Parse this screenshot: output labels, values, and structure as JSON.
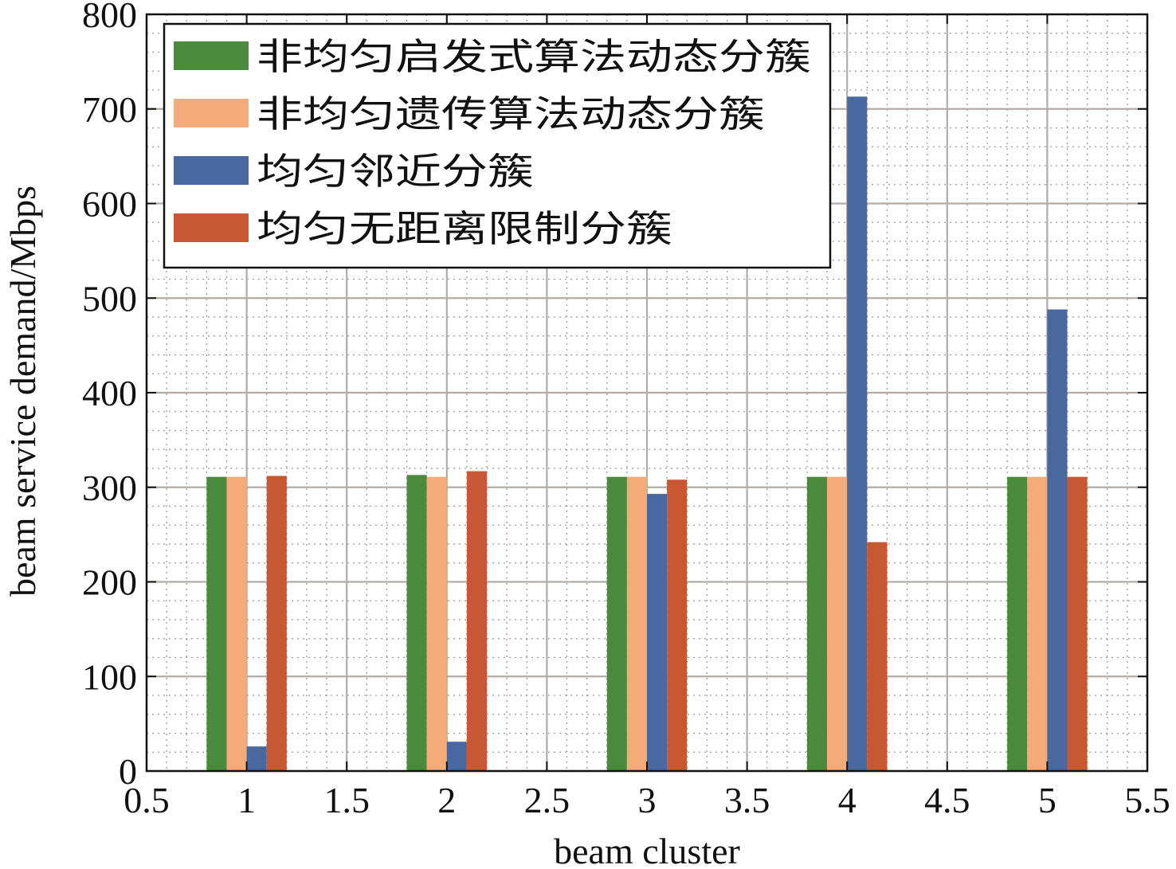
{
  "chart_data": {
    "type": "bar",
    "xlabel": "beam cluster",
    "ylabel": "beam service demand/Mbps",
    "xlim": [
      0.5,
      5.5
    ],
    "ylim": [
      0,
      800
    ],
    "x_ticks": [
      "0.5",
      "1",
      "1.5",
      "2",
      "2.5",
      "3",
      "3.5",
      "4",
      "4.5",
      "5",
      "5.5"
    ],
    "y_ticks": [
      "0",
      "100",
      "200",
      "300",
      "400",
      "500",
      "600",
      "700",
      "800"
    ],
    "categories": [
      1,
      2,
      3,
      4,
      5
    ],
    "series": [
      {
        "name": "非均匀启发式算法动态分簇",
        "color": "#4a8a3c",
        "values": [
          311,
          313,
          311,
          311,
          311
        ]
      },
      {
        "name": "非均匀遗传算法动态分簇",
        "color": "#f4ab78",
        "values": [
          311,
          311,
          311,
          311,
          311
        ]
      },
      {
        "name": "均匀邻近分簇",
        "color": "#4a68a0",
        "values": [
          26,
          31,
          293,
          713,
          488
        ]
      },
      {
        "name": "均匀无距离限制分簇",
        "color": "#c85832",
        "values": [
          312,
          317,
          308,
          242,
          311
        ]
      }
    ],
    "grid": true,
    "minor_grid": true,
    "legend_position": "top-left"
  }
}
